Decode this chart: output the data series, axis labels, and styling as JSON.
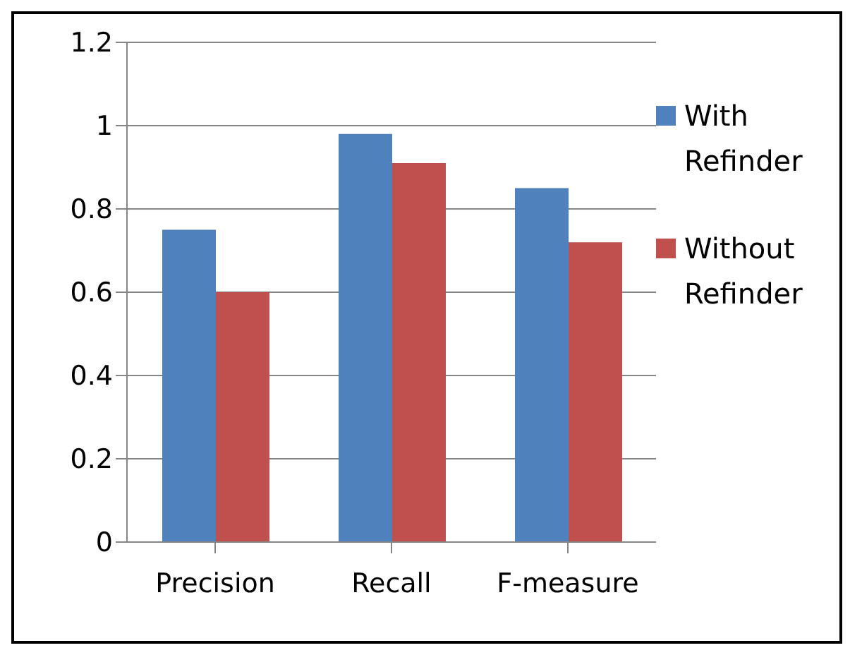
{
  "chart_data": {
    "type": "bar",
    "categories": [
      "Precision",
      "Recall",
      "F-measure"
    ],
    "series": [
      {
        "name": "With Refinder",
        "color": "#4f81bd",
        "values": [
          0.75,
          0.98,
          0.85
        ]
      },
      {
        "name": "Without Refinder",
        "color": "#c0504d",
        "values": [
          0.6,
          0.91,
          0.72
        ]
      }
    ],
    "ylim": [
      0,
      1.2
    ],
    "yticks": [
      0,
      0.2,
      0.4,
      0.6,
      0.8,
      1,
      1.2
    ],
    "grid": "y",
    "legend": "right"
  }
}
